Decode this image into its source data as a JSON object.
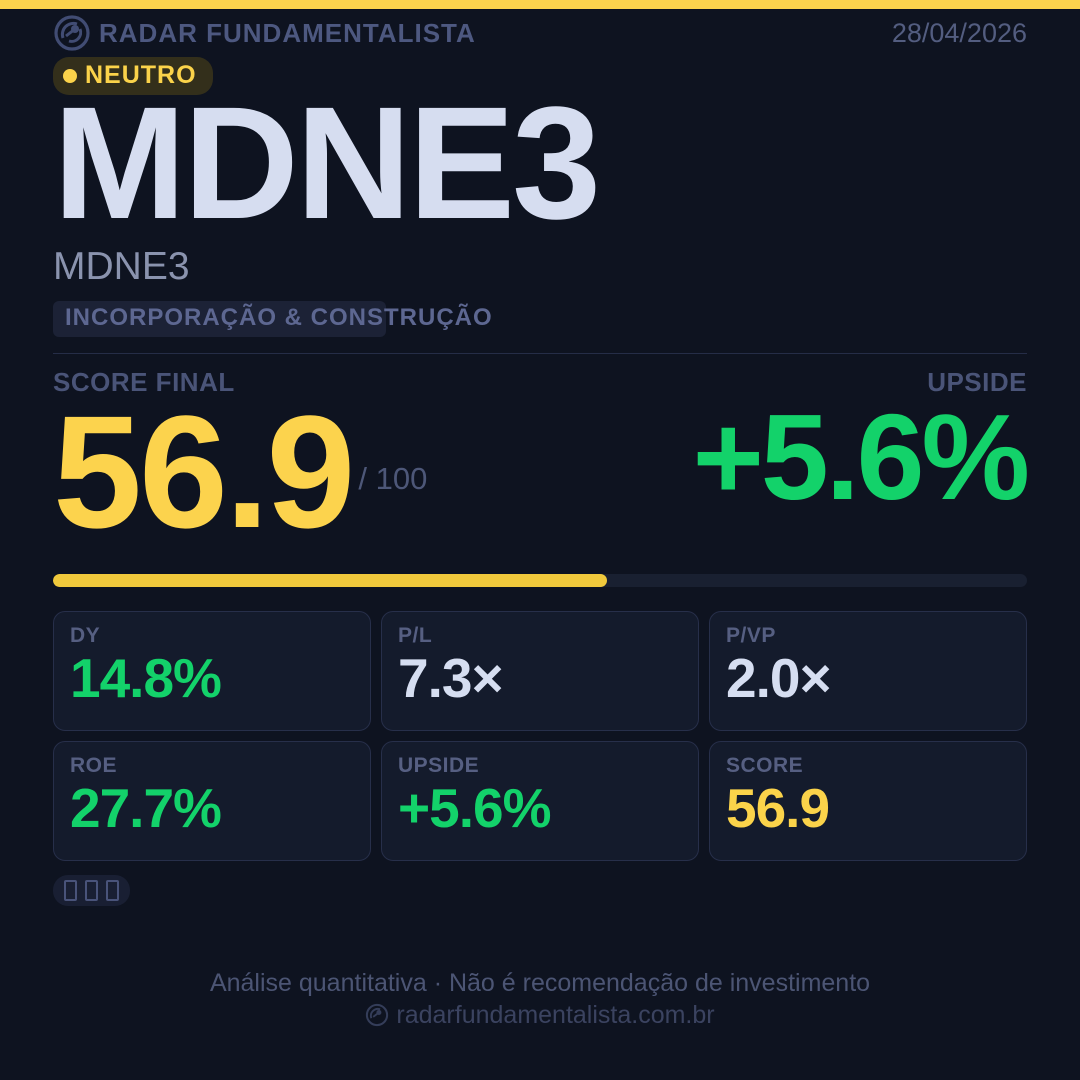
{
  "header": {
    "brand": "RADAR FUNDAMENTALISTA",
    "date": "28/04/2026",
    "badge": {
      "label": "NEUTRO",
      "status_color": "#fbd34a"
    }
  },
  "ticker": {
    "title": "MDNE3",
    "subtitle": "MDNE3",
    "sector_tag": "INCORPORAÇÃO & CONSTRUÇÃO"
  },
  "score": {
    "label": "SCORE FINAL",
    "value": "56.9",
    "max": "/ 100",
    "progress_pct": 56.9,
    "upside_label": "UPSIDE",
    "upside_value": "+5.6%"
  },
  "metrics": [
    {
      "label": "DY",
      "value": "14.8%",
      "color": "green"
    },
    {
      "label": "P/L",
      "value": "7.3×",
      "color": "white"
    },
    {
      "label": "P/VP",
      "value": "2.0×",
      "color": "white"
    },
    {
      "label": "ROE",
      "value": "27.7%",
      "color": "green"
    },
    {
      "label": "UPSIDE",
      "value": "+5.6%",
      "color": "green"
    },
    {
      "label": "SCORE",
      "value": "56.9",
      "color": "yellow"
    }
  ],
  "glyph_pill": {
    "missing_glyph_count": 3
  },
  "footer": {
    "disclaimer": "Análise quantitativa  ·  Não é recomendação de investimento",
    "website": "radarfundamentalista.com.br"
  },
  "colors": {
    "background": "#0e1320",
    "accent_yellow": "#fcd34d",
    "positive_green": "#13d26a",
    "slate_text": "#4d5880",
    "card_bg": "#141b2c"
  }
}
